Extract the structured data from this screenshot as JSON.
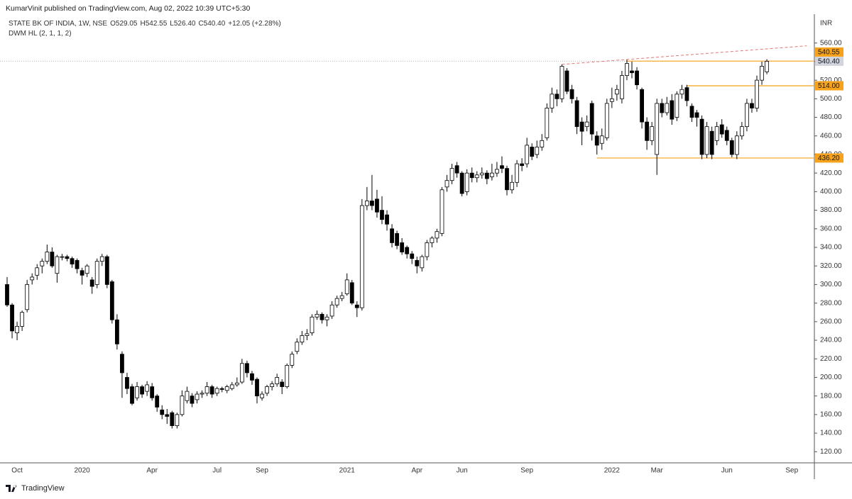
{
  "chart_data": {
    "type": "candlestick",
    "published": "KumarVinit published on TradingView.com, Aug 02, 2022 10:39 UTC+5:30",
    "symbol": "STATE BK OF INDIA, 1W, NSE",
    "ohlc_text": [
      "O529.05",
      "H542.55",
      "L526.40",
      "C540.40",
      "+12.05 (+2.28%)"
    ],
    "indicator": "DWM HL (2, 1, 1, 2)",
    "currency": "INR",
    "brand": "TradingView",
    "categories": [
      null,
      null,
      "Oct",
      null,
      null,
      null,
      null,
      null,
      null,
      null,
      null,
      null,
      null,
      null,
      null,
      "2020",
      null,
      null,
      null,
      null,
      null,
      null,
      null,
      null,
      null,
      null,
      null,
      null,
      null,
      "Apr",
      null,
      null,
      null,
      null,
      null,
      null,
      null,
      null,
      null,
      null,
      null,
      null,
      "Jul",
      null,
      null,
      null,
      null,
      null,
      null,
      null,
      null,
      "Sep",
      null,
      null,
      null,
      null,
      null,
      null,
      null,
      null,
      null,
      null,
      null,
      null,
      null,
      null,
      null,
      null,
      "2021",
      null,
      null,
      null,
      null,
      null,
      null,
      null,
      null,
      null,
      null,
      null,
      null,
      null,
      "Apr",
      null,
      null,
      null,
      null,
      null,
      null,
      null,
      null,
      "Jun",
      null,
      null,
      null,
      null,
      null,
      null,
      null,
      null,
      null,
      null,
      null,
      null,
      "Sep",
      null,
      null,
      null,
      null,
      null,
      null,
      null,
      null,
      null,
      null,
      null,
      null,
      null,
      null,
      null,
      null,
      "2022",
      null,
      null,
      null,
      null,
      null,
      null,
      null,
      null,
      "Mar",
      null,
      null,
      null,
      null,
      null,
      null,
      null,
      null,
      null,
      null,
      null,
      null,
      null,
      "Jun",
      null,
      null,
      null,
      null,
      null,
      null,
      null,
      null,
      null,
      null,
      null,
      null,
      "Sep",
      null,
      null,
      null
    ],
    "ohlc": [
      [
        300,
        308,
        276,
        278
      ],
      [
        278,
        280,
        242,
        250
      ],
      [
        248,
        260,
        240,
        255
      ],
      [
        255,
        272,
        250,
        270
      ],
      [
        273,
        305,
        270,
        300
      ],
      [
        305,
        312,
        300,
        308
      ],
      [
        310,
        322,
        305,
        318
      ],
      [
        320,
        328,
        312,
        325
      ],
      [
        325,
        343,
        322,
        335
      ],
      [
        335,
        340,
        318,
        320
      ],
      [
        312,
        332,
        302,
        330
      ],
      [
        330,
        333,
        326,
        330
      ],
      [
        330,
        332,
        325,
        328
      ],
      [
        328,
        330,
        318,
        322
      ],
      [
        326,
        328,
        312,
        317
      ],
      [
        315,
        318,
        300,
        310
      ],
      [
        312,
        322,
        308,
        320
      ],
      [
        305,
        308,
        290,
        298
      ],
      [
        300,
        328,
        296,
        325
      ],
      [
        325,
        333,
        320,
        330
      ],
      [
        330,
        332,
        296,
        300
      ],
      [
        303,
        305,
        258,
        262
      ],
      [
        262,
        268,
        230,
        236
      ],
      [
        225,
        228,
        178,
        205
      ],
      [
        200,
        205,
        182,
        188
      ],
      [
        190,
        193,
        170,
        172
      ],
      [
        178,
        195,
        175,
        190
      ],
      [
        190,
        192,
        178,
        182
      ],
      [
        185,
        196,
        180,
        192
      ],
      [
        190,
        194,
        175,
        178
      ],
      [
        180,
        182,
        163,
        168
      ],
      [
        165,
        170,
        155,
        160
      ],
      [
        160,
        166,
        150,
        158
      ],
      [
        162,
        164,
        145,
        148
      ],
      [
        148,
        162,
        145,
        160
      ],
      [
        160,
        186,
        158,
        180
      ],
      [
        175,
        190,
        172,
        185
      ],
      [
        180,
        183,
        168,
        172
      ],
      [
        176,
        185,
        172,
        182
      ],
      [
        182,
        186,
        178,
        183
      ],
      [
        183,
        195,
        180,
        190
      ],
      [
        190,
        192,
        178,
        182
      ],
      [
        183,
        190,
        180,
        188
      ],
      [
        188,
        190,
        184,
        187
      ],
      [
        186,
        192,
        183,
        190
      ],
      [
        188,
        195,
        186,
        192
      ],
      [
        192,
        200,
        190,
        194
      ],
      [
        195,
        220,
        193,
        215
      ],
      [
        215,
        218,
        200,
        205
      ],
      [
        204,
        207,
        192,
        197
      ],
      [
        198,
        200,
        172,
        180
      ],
      [
        178,
        185,
        175,
        182
      ],
      [
        183,
        192,
        180,
        190
      ],
      [
        190,
        196,
        186,
        193
      ],
      [
        193,
        204,
        190,
        200
      ],
      [
        195,
        198,
        182,
        190
      ],
      [
        190,
        215,
        188,
        213
      ],
      [
        213,
        228,
        210,
        225
      ],
      [
        228,
        242,
        225,
        238
      ],
      [
        238,
        250,
        235,
        245
      ],
      [
        245,
        252,
        240,
        247
      ],
      [
        248,
        268,
        245,
        265
      ],
      [
        265,
        272,
        262,
        268
      ],
      [
        268,
        270,
        258,
        262
      ],
      [
        262,
        268,
        255,
        265
      ],
      [
        266,
        282,
        263,
        278
      ],
      [
        278,
        288,
        275,
        285
      ],
      [
        285,
        292,
        282,
        288
      ],
      [
        290,
        312,
        288,
        305
      ],
      [
        302,
        305,
        278,
        280
      ],
      [
        278,
        282,
        265,
        275
      ],
      [
        275,
        392,
        272,
        385
      ],
      [
        385,
        405,
        380,
        390
      ],
      [
        390,
        418,
        380,
        385
      ],
      [
        392,
        402,
        372,
        378
      ],
      [
        380,
        395,
        365,
        370
      ],
      [
        375,
        380,
        358,
        365
      ],
      [
        360,
        365,
        340,
        345
      ],
      [
        355,
        358,
        338,
        342
      ],
      [
        345,
        350,
        332,
        335
      ],
      [
        340,
        342,
        328,
        333
      ],
      [
        333,
        336,
        322,
        328
      ],
      [
        326,
        330,
        312,
        320
      ],
      [
        318,
        332,
        314,
        330
      ],
      [
        330,
        348,
        326,
        345
      ],
      [
        345,
        352,
        340,
        350
      ],
      [
        350,
        360,
        345,
        357
      ],
      [
        355,
        405,
        352,
        402
      ],
      [
        405,
        418,
        400,
        412
      ],
      [
        412,
        430,
        408,
        425
      ],
      [
        428,
        432,
        415,
        420
      ],
      [
        420,
        422,
        395,
        398
      ],
      [
        400,
        424,
        396,
        420
      ],
      [
        420,
        426,
        410,
        415
      ],
      [
        415,
        422,
        410,
        418
      ],
      [
        418,
        426,
        414,
        420
      ],
      [
        420,
        423,
        408,
        414
      ],
      [
        416,
        430,
        412,
        420
      ],
      [
        420,
        432,
        416,
        424
      ],
      [
        428,
        438,
        420,
        425
      ],
      [
        425,
        428,
        396,
        402
      ],
      [
        402,
        418,
        398,
        410
      ],
      [
        410,
        434,
        405,
        430
      ],
      [
        430,
        436,
        422,
        428
      ],
      [
        430,
        458,
        426,
        450
      ],
      [
        448,
        452,
        434,
        438
      ],
      [
        440,
        455,
        436,
        448
      ],
      [
        448,
        462,
        444,
        455
      ],
      [
        458,
        495,
        455,
        490
      ],
      [
        490,
        512,
        485,
        505
      ],
      [
        505,
        510,
        492,
        500
      ],
      [
        500,
        537,
        496,
        535
      ],
      [
        530,
        533,
        505,
        508
      ],
      [
        510,
        515,
        495,
        500
      ],
      [
        498,
        502,
        462,
        470
      ],
      [
        475,
        480,
        450,
        465
      ],
      [
        470,
        482,
        465,
        475
      ],
      [
        495,
        498,
        455,
        462
      ],
      [
        460,
        465,
        440,
        450
      ],
      [
        452,
        468,
        445,
        460
      ],
      [
        458,
        500,
        455,
        495
      ],
      [
        497,
        512,
        490,
        500
      ],
      [
        505,
        515,
        498,
        510
      ],
      [
        500,
        530,
        495,
        525
      ],
      [
        525,
        542,
        520,
        538
      ],
      [
        530,
        540,
        522,
        528
      ],
      [
        530,
        534,
        510,
        515
      ],
      [
        510,
        512,
        468,
        475
      ],
      [
        475,
        480,
        445,
        455
      ],
      [
        455,
        475,
        450,
        470
      ],
      [
        440,
        500,
        418,
        495
      ],
      [
        495,
        500,
        480,
        485
      ],
      [
        485,
        502,
        482,
        495
      ],
      [
        498,
        505,
        472,
        478
      ],
      [
        480,
        508,
        476,
        505
      ],
      [
        505,
        515,
        500,
        510
      ],
      [
        512,
        515,
        492,
        498
      ],
      [
        492,
        495,
        475,
        480
      ],
      [
        485,
        488,
        470,
        480
      ],
      [
        478,
        482,
        435,
        440
      ],
      [
        440,
        475,
        436,
        470
      ],
      [
        465,
        470,
        435,
        440
      ],
      [
        455,
        475,
        450,
        470
      ],
      [
        472,
        478,
        458,
        462
      ],
      [
        466,
        470,
        450,
        455
      ],
      [
        455,
        458,
        437,
        440
      ],
      [
        440,
        465,
        435,
        460
      ],
      [
        460,
        475,
        456,
        470
      ],
      [
        470,
        500,
        465,
        495
      ],
      [
        495,
        500,
        485,
        490
      ],
      [
        490,
        525,
        486,
        520
      ],
      [
        520,
        540,
        515,
        535
      ],
      [
        529.05,
        542.55,
        526.4,
        540.4
      ],
      null,
      null,
      null,
      null,
      null,
      null,
      null,
      null
    ],
    "up_color": "#ffffff",
    "down_color": "#000000",
    "wick_color": "#000000",
    "ylim": [
      108,
      572
    ],
    "yticks": [
      {
        "value": 120,
        "label": "120.00"
      },
      {
        "value": 140,
        "label": "140.00"
      },
      {
        "value": 160,
        "label": "160.00"
      },
      {
        "value": 180,
        "label": "180.00"
      },
      {
        "value": 200,
        "label": "200.00"
      },
      {
        "value": 220,
        "label": "220.00"
      },
      {
        "value": 240,
        "label": "240.00"
      },
      {
        "value": 260,
        "label": "260.00"
      },
      {
        "value": 280,
        "label": "280.00"
      },
      {
        "value": 300,
        "label": "300.00"
      },
      {
        "value": 320,
        "label": "320.00"
      },
      {
        "value": 340,
        "label": "340.00"
      },
      {
        "value": 360,
        "label": "360.00"
      },
      {
        "value": 380,
        "label": "380.00"
      },
      {
        "value": 400,
        "label": "400.00"
      },
      {
        "value": 420,
        "label": "420.00"
      },
      {
        "value": 440,
        "label": "440.00"
      },
      {
        "value": 460,
        "label": "460.00"
      },
      {
        "value": 480,
        "label": "480.00"
      },
      {
        "value": 500,
        "label": "500.00"
      },
      {
        "value": 520,
        "label": "520.00"
      },
      {
        "value": 540,
        "label": "540.00"
      },
      {
        "value": 560,
        "label": "560.00"
      }
    ],
    "levels": [
      {
        "value": 540.55,
        "label": "540.55",
        "start": 124,
        "color": "#f7a21b"
      },
      {
        "value": 514,
        "label": "514.00",
        "start": 136,
        "color": "#f7a21b"
      },
      {
        "value": 436.2,
        "label": "436.20",
        "start": 118,
        "color": "#f7a21b"
      }
    ],
    "last_price": {
      "value": 540.4,
      "label": "540.40",
      "color": "#d1d4dc"
    },
    "trendline": {
      "from": [
        111,
        537
      ],
      "to": [
        160,
        557
      ],
      "color": "#e57373"
    },
    "grid": false
  }
}
